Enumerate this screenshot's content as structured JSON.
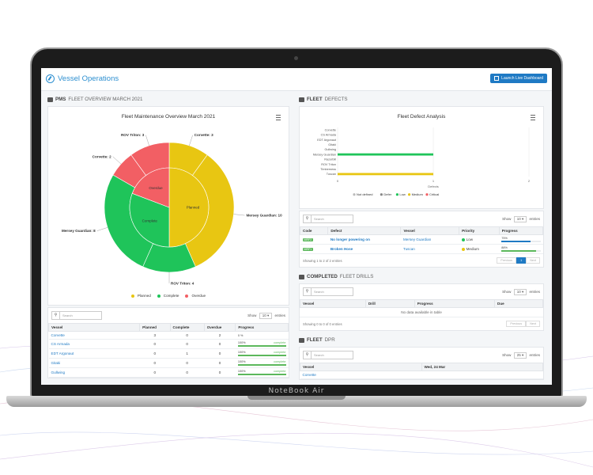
{
  "app": {
    "title": "Vessel Operations",
    "launch_label": "Launch Live Dashboard",
    "device_brand": "NoteBook Air"
  },
  "pms": {
    "section_prefix": "PMS",
    "section_rest": "FLEET OVERVIEW MARCH 2021",
    "chart_title": "Fleet Maintenance Overview March 2021",
    "slice_labels": [
      {
        "text": "Corvette: 3"
      },
      {
        "text": "Mersey Guardian: 10"
      },
      {
        "text": "ROV Triton: 4"
      },
      {
        "text": "Mersey Guardian: 8"
      },
      {
        "text": "Corvette: 2"
      },
      {
        "text": "ROV Triton: 3"
      }
    ],
    "inner_labels": {
      "planned": "Planned",
      "complete": "Complete",
      "overdue": "Overdue"
    },
    "legend": [
      {
        "label": "Planned",
        "color": "#e8c612"
      },
      {
        "label": "Complete",
        "color": "#1fc45a"
      },
      {
        "label": "Overdue",
        "color": "#f25f64"
      }
    ],
    "search_placeholder": "Search",
    "show_label": "Show",
    "show_value": "10",
    "entries_label": "entries",
    "columns": [
      "Vessel",
      "Planned",
      "Complete",
      "Overdue",
      "Progress"
    ],
    "rows": [
      {
        "vessel": "Corvette",
        "planned": "3",
        "complete": "0",
        "overdue": "2",
        "progress_label": "0 %",
        "progress_pct": 0,
        "progress_text": ""
      },
      {
        "vessel": "CS Armada",
        "planned": "0",
        "complete": "0",
        "overdue": "0",
        "progress_label": "100%",
        "progress_pct": 100,
        "progress_text": "complete"
      },
      {
        "vessel": "EDT Argonaut",
        "planned": "0",
        "complete": "1",
        "overdue": "0",
        "progress_label": "100%",
        "progress_pct": 100,
        "progress_text": "complete"
      },
      {
        "vessel": "Gitaki",
        "planned": "0",
        "complete": "0",
        "overdue": "0",
        "progress_label": "100%",
        "progress_pct": 100,
        "progress_text": "complete"
      },
      {
        "vessel": "Gullwing",
        "planned": "0",
        "complete": "0",
        "overdue": "0",
        "progress_label": "100%",
        "progress_pct": 100,
        "progress_text": "complete"
      }
    ]
  },
  "chart_data": {
    "type": "pie",
    "title": "Fleet Maintenance Overview March 2021",
    "inner": [
      {
        "name": "Planned",
        "value": 13,
        "color": "#e8c612"
      },
      {
        "name": "Complete",
        "value": 8,
        "color": "#1fc45a"
      },
      {
        "name": "Overdue",
        "value": 5,
        "color": "#f25f64"
      }
    ],
    "outer": [
      {
        "name": "Corvette",
        "value": 3,
        "group": "Planned"
      },
      {
        "name": "Mersey Guardian",
        "value": 10,
        "group": "Planned"
      },
      {
        "name": "ROV Triton",
        "value": 4,
        "group": "Complete"
      },
      {
        "name": "Mersey Guardian",
        "value": 8,
        "group": "Complete"
      },
      {
        "name": "Corvette",
        "value": 2,
        "group": "Overdue"
      },
      {
        "name": "ROV Triton",
        "value": 3,
        "group": "Overdue"
      }
    ],
    "legend_position": "bottom"
  },
  "defects": {
    "section_prefix": "FLEET",
    "section_rest": "DEFECTS",
    "chart_title": "Fleet Defect Analysis",
    "chart": {
      "type": "bar",
      "orientation": "horizontal",
      "categories": [
        "Corvette",
        "CS Armada",
        "EDT Argonaut",
        "Gitaki",
        "Gullwing",
        "Mersey Guardian",
        "Razorbill",
        "ROV Triton",
        "Timberness",
        "Tuscan"
      ],
      "series": [
        {
          "name": "Not defined",
          "color": "#bbbbbb",
          "values": [
            0,
            0,
            0,
            0,
            0,
            0,
            0,
            0,
            0,
            0
          ]
        },
        {
          "name": "Defer",
          "color": "#888888",
          "values": [
            0,
            0,
            0,
            0,
            0,
            0,
            0,
            0,
            0,
            0
          ]
        },
        {
          "name": "Low",
          "color": "#1fc45a",
          "values": [
            0,
            0,
            0,
            0,
            0,
            1,
            0,
            0,
            0,
            0
          ]
        },
        {
          "name": "Medium",
          "color": "#e8c612",
          "values": [
            0,
            0,
            0,
            0,
            0,
            0,
            0,
            0,
            0,
            1
          ]
        },
        {
          "name": "Critical",
          "color": "#f25f64",
          "values": [
            0,
            0,
            0,
            0,
            0,
            0,
            0,
            0,
            0,
            0
          ]
        }
      ],
      "xlim": [
        0,
        2
      ],
      "x_ticks": [
        "0",
        "1",
        "2"
      ],
      "xlabel": "Defects"
    },
    "search_placeholder": "Search",
    "show_label": "Show",
    "show_value": "10",
    "entries_label": "entries",
    "columns": [
      "Code",
      "Defect",
      "Vessel",
      "Priority",
      "Progress"
    ],
    "rows": [
      {
        "code": "MRF2",
        "defect": "No longer powering on",
        "vessel": "Mersey Guardian",
        "priority": "Low",
        "priority_color": "#1fc45a",
        "progress_label": "75%",
        "progress_pct": 75,
        "bar_color": "#1f7ac4"
      },
      {
        "code": "MRF1",
        "defect": "Broken Hose",
        "vessel": "Tuscan",
        "priority": "Medium",
        "priority_color": "#e8c612",
        "progress_label": "88%",
        "progress_pct": 88,
        "bar_color": "#5cb85c"
      }
    ],
    "footer_text": "Showing 1 to 2 of 2 entries",
    "pager": {
      "prev": "Previous",
      "page": "1",
      "next": "Next"
    }
  },
  "drills": {
    "section_prefix": "COMPLETED",
    "section_rest": "FLEET DRILLS",
    "search_placeholder": "Search",
    "show_label": "Show",
    "show_value": "10",
    "entries_label": "entries",
    "columns": [
      "Vessel",
      "Drill",
      "Progress",
      "Due"
    ],
    "empty_text": "No data available in table",
    "footer_text": "Showing 0 to 0 of 0 entries",
    "pager": {
      "prev": "Previous",
      "next": "Next"
    }
  },
  "dpr": {
    "section_prefix": "FLEET",
    "section_rest": "DPR",
    "search_placeholder": "Search",
    "show_label": "Show",
    "show_value": "25",
    "entries_label": "entries",
    "columns": [
      "Vessel",
      "Wed, 24 Mar"
    ],
    "rows": [
      {
        "vessel": "Corvette"
      }
    ]
  }
}
